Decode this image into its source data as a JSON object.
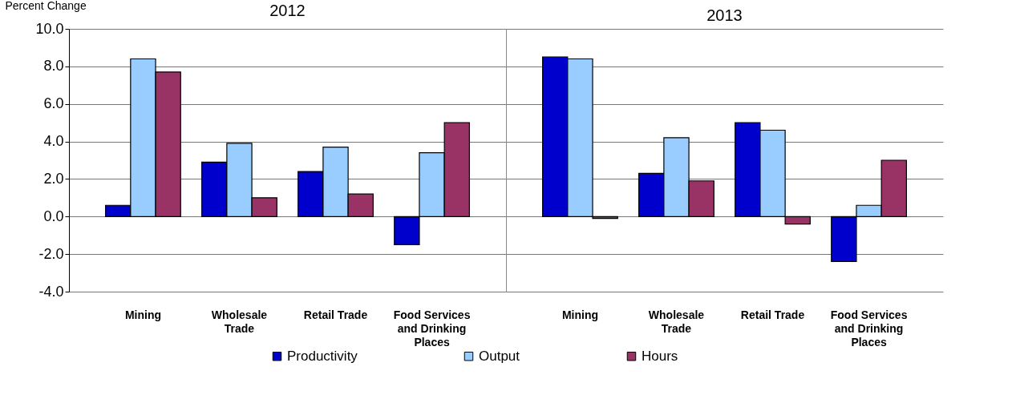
{
  "chart_data": [
    {
      "type": "bar",
      "title": "2012",
      "ylabel": "Percent Change",
      "categories": [
        "Mining",
        "Wholesale Trade",
        "Retail Trade",
        "Food Services and Drinking Places"
      ],
      "series": [
        {
          "name": "Productivity",
          "color": "#0000cc",
          "values": [
            0.6,
            2.9,
            2.4,
            -1.5
          ]
        },
        {
          "name": "Output",
          "color": "#99ccff",
          "values": [
            8.4,
            3.9,
            3.7,
            3.4
          ]
        },
        {
          "name": "Hours",
          "color": "#993366",
          "values": [
            7.7,
            1.0,
            1.2,
            5.0
          ]
        }
      ],
      "ylim": [
        -4,
        10
      ],
      "yticks": [
        {
          "value": -4,
          "label": "-4.0"
        },
        {
          "value": -2,
          "label": "-2.0"
        },
        {
          "value": 0,
          "label": "0.0"
        },
        {
          "value": 2,
          "label": "2.0"
        },
        {
          "value": 4,
          "label": "4.0"
        },
        {
          "value": 6,
          "label": "6.0"
        },
        {
          "value": 8,
          "label": "8.0"
        },
        {
          "value": 10,
          "label": "10.0"
        }
      ],
      "grid": "y",
      "legend": "bottom"
    },
    {
      "type": "bar",
      "title": "2013",
      "categories": [
        "Mining",
        "Wholesale Trade",
        "Retail Trade",
        "Food Services and Drinking Places"
      ],
      "series": [
        {
          "name": "Productivity",
          "color": "#0000cc",
          "values": [
            8.5,
            2.3,
            5.0,
            -2.4
          ]
        },
        {
          "name": "Output",
          "color": "#99ccff",
          "values": [
            8.4,
            4.2,
            4.6,
            0.6
          ]
        },
        {
          "name": "Hours",
          "color": "#993366",
          "values": [
            -0.1,
            1.9,
            -0.4,
            3.0
          ]
        }
      ],
      "ylim": [
        -4,
        10
      ],
      "grid": "y",
      "legend": "bottom",
      "tick_labels": "x"
    }
  ]
}
